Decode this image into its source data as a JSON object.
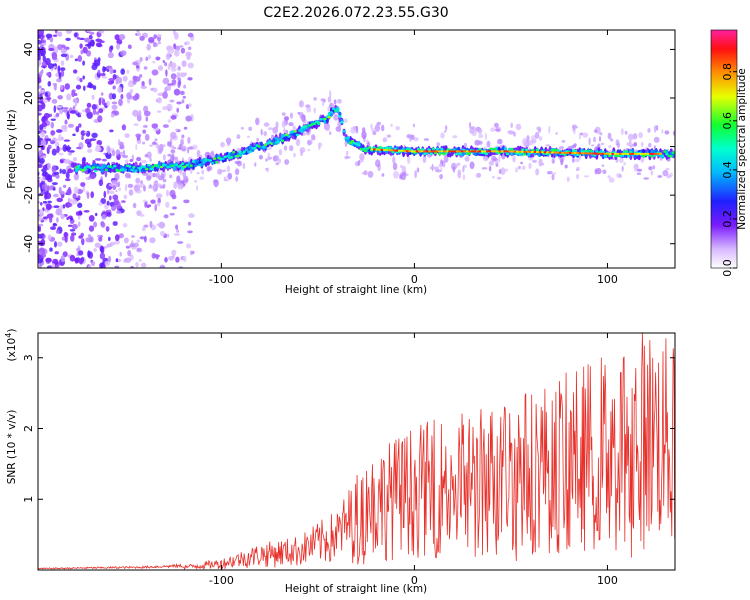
{
  "title": "C2E2.2026.072.23.55.G30",
  "chart_data": [
    {
      "type": "heatmap",
      "name": "spectrogram",
      "xlabel": "Height of straight line (km)",
      "ylabel": "Frequency (Hz)",
      "xlim": [
        -195,
        135
      ],
      "ylim": [
        -50,
        48
      ],
      "xticks": [
        -100,
        0,
        100
      ],
      "yticks": [
        -40,
        -20,
        0,
        20,
        40
      ],
      "colorbar": {
        "label": "Normalized spectral amplitude",
        "range": [
          0,
          0.97
        ],
        "ticks": [
          0.0,
          0.2,
          0.4,
          0.6,
          0.8
        ]
      },
      "ridge": [
        {
          "x": -180,
          "f": -9
        },
        {
          "x": -150,
          "f": -9
        },
        {
          "x": -120,
          "f": -8
        },
        {
          "x": -100,
          "f": -5
        },
        {
          "x": -80,
          "f": 0
        },
        {
          "x": -60,
          "f": 6
        },
        {
          "x": -45,
          "f": 12
        },
        {
          "x": -40,
          "f": 16
        },
        {
          "x": -35,
          "f": 3
        },
        {
          "x": -25,
          "f": -1
        },
        {
          "x": 0,
          "f": -2
        },
        {
          "x": 50,
          "f": -2
        },
        {
          "x": 100,
          "f": -3
        },
        {
          "x": 135,
          "f": -3
        }
      ]
    },
    {
      "type": "line",
      "name": "snr",
      "xlabel": "Height of straight line (km)",
      "ylabel": "SNR (10 * v/v)",
      "ylabel_exponent": "(x10",
      "ylabel_exponent_power": "4",
      "xlim": [
        -195,
        135
      ],
      "ylim": [
        0,
        3.35
      ],
      "xticks": [
        -100,
        0,
        100
      ],
      "yticks": [
        1,
        2,
        3
      ],
      "color": "#e8302a",
      "envelope": [
        {
          "x": -195,
          "v": 0.02
        },
        {
          "x": -140,
          "v": 0.04
        },
        {
          "x": -120,
          "v": 0.06
        },
        {
          "x": -100,
          "v": 0.15
        },
        {
          "x": -80,
          "v": 0.35
        },
        {
          "x": -60,
          "v": 0.45
        },
        {
          "x": -40,
          "v": 0.8
        },
        {
          "x": -25,
          "v": 1.5
        },
        {
          "x": 0,
          "v": 1.9
        },
        {
          "x": 40,
          "v": 2.2
        },
        {
          "x": 80,
          "v": 2.6
        },
        {
          "x": 120,
          "v": 3.2
        },
        {
          "x": 135,
          "v": 3.0
        }
      ]
    }
  ]
}
